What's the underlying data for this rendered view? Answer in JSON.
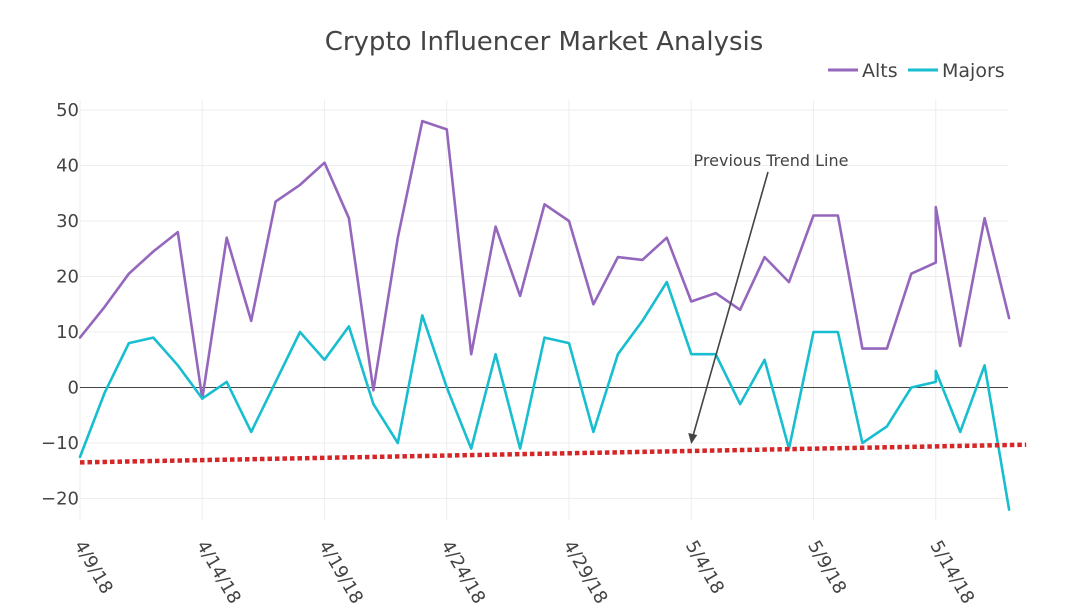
{
  "chart_data": {
    "type": "line",
    "title": "Crypto Influencer Market Analysis",
    "xlabel": "",
    "ylabel": "",
    "ylim": [
      -25,
      53
    ],
    "yticks": [
      50,
      40,
      30,
      20,
      10,
      0,
      -10,
      -20
    ],
    "ytick_labels": [
      "50",
      "40",
      "30",
      "20",
      "10",
      "0",
      "−10",
      "−20"
    ],
    "x_start": "2018-04-09",
    "x_end": "2018-05-17",
    "xticks": [
      {
        "day": 0,
        "label": "4/9/18"
      },
      {
        "day": 5,
        "label": "4/14/18"
      },
      {
        "day": 10,
        "label": "4/19/18"
      },
      {
        "day": 15,
        "label": "4/24/18"
      },
      {
        "day": 20,
        "label": "4/29/18"
      },
      {
        "day": 25,
        "label": "5/4/18"
      },
      {
        "day": 30,
        "label": "5/9/18"
      },
      {
        "day": 35,
        "label": "5/14/18"
      }
    ],
    "legend_position": "top-right",
    "series": [
      {
        "name": "Alts",
        "color": "#9467bd",
        "x": [
          0,
          1,
          2,
          3,
          4,
          5,
          6,
          7,
          8,
          9,
          10,
          11,
          12,
          13,
          14,
          15,
          16,
          17,
          18,
          19,
          20,
          21,
          22,
          23,
          24,
          25,
          26,
          27,
          28,
          29,
          30,
          31,
          32,
          33,
          34,
          35,
          35,
          36,
          37,
          38
        ],
        "y": [
          9,
          14.5,
          20.5,
          24.5,
          28,
          -2,
          27,
          12,
          33.5,
          36.5,
          40.5,
          30.5,
          -0.5,
          27,
          48,
          46.5,
          6,
          29,
          16.5,
          33,
          30,
          15,
          23.5,
          23,
          27,
          15.5,
          17,
          14,
          23.5,
          19,
          31,
          31,
          7,
          7,
          20.5,
          22.5,
          32.5,
          7.5,
          30.5,
          12.5
        ]
      },
      {
        "name": "Majors",
        "color": "#17becf",
        "x": [
          0,
          1,
          2,
          3,
          4,
          5,
          6,
          7,
          8,
          9,
          10,
          11,
          12,
          13,
          14,
          15,
          16,
          17,
          18,
          19,
          20,
          21,
          22,
          23,
          24,
          25,
          26,
          27,
          28,
          29,
          30,
          31,
          32,
          33,
          34,
          35,
          35,
          36,
          37,
          38
        ],
        "y": [
          -12.5,
          -1,
          8,
          9,
          4,
          -2,
          1,
          -8,
          1,
          10,
          5,
          11,
          -3,
          -10,
          13,
          0,
          -11,
          6,
          -11,
          9,
          8,
          -8,
          6,
          12,
          19,
          6,
          6,
          -3,
          5,
          -11,
          10,
          10,
          -10,
          -7,
          0,
          1,
          3,
          -8,
          4,
          -22
        ]
      },
      {
        "name": "Previous Trend Line",
        "color": "#d62728",
        "dash": "dot",
        "show_in_legend": false,
        "x": [
          0,
          38.7
        ],
        "y": [
          -13.5,
          -10.3
        ]
      }
    ],
    "annotations": [
      {
        "text": "Previous Trend Line",
        "x": 25,
        "y": -10,
        "arrow": true
      }
    ]
  }
}
